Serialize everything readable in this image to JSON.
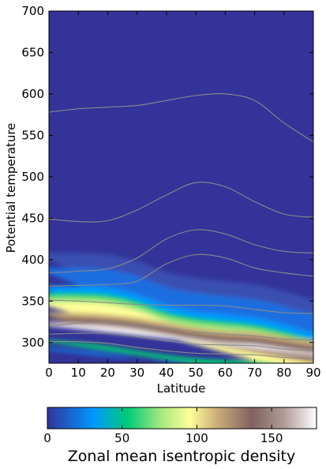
{
  "chart_data": {
    "type": "heatmap",
    "xlabel": "Latitude",
    "ylabel": "Potential temperature",
    "xlim": [
      0,
      90
    ],
    "ylim": [
      275,
      700
    ],
    "xticks": [
      0,
      10,
      20,
      30,
      40,
      50,
      60,
      70,
      80,
      90
    ],
    "yticks": [
      300,
      350,
      400,
      450,
      500,
      550,
      600,
      650,
      700
    ],
    "grid": false,
    "colormap": "terrain",
    "colorbar": {
      "label": "Zonal mean isentropic density",
      "range": [
        0,
        180
      ],
      "ticks": [
        0,
        50,
        100,
        150
      ],
      "orientation": "horizontal",
      "colors": [
        "#333399",
        "#0097ff",
        "#00cc77",
        "#a3e87f",
        "#fffe99",
        "#ccae79",
        "#80615d",
        "#b19d98",
        "#ffffff"
      ]
    },
    "x": [
      0,
      10,
      20,
      30,
      40,
      50,
      60,
      70,
      80,
      90
    ],
    "density_field": {
      "description_free": true,
      "peak_lower_theta": [
        315,
        312,
        308,
        302,
        297,
        293,
        291,
        290,
        285,
        280
      ],
      "peak_upper_theta": [
        325,
        324,
        322,
        318,
        312,
        306,
        302,
        300,
        295,
        290
      ],
      "upper_edge_theta": [
        368,
        368,
        366,
        358,
        345,
        338,
        334,
        330,
        322,
        312
      ]
    },
    "contour_lines": [
      {
        "level": 1,
        "theta": [
          578,
          582,
          584,
          586,
          592,
          598,
          600,
          592,
          565,
          542
        ]
      },
      {
        "level": 2,
        "theta": [
          449,
          446,
          447,
          460,
          478,
          493,
          488,
          470,
          455,
          451
        ]
      },
      {
        "level": 3,
        "theta": [
          384,
          386,
          389,
          402,
          425,
          436,
          431,
          418,
          410,
          408
        ]
      },
      {
        "level": 4,
        "theta": [
          368,
          369,
          370,
          374,
          395,
          406,
          402,
          390,
          384,
          380
        ]
      },
      {
        "level": 5,
        "theta": [
          351,
          350,
          348,
          346,
          345,
          345,
          344,
          340,
          336,
          335
        ]
      },
      {
        "level": 6,
        "theta": [
          320,
          323,
          325,
          322,
          318,
          313,
          310,
          308,
          304,
          303
        ]
      },
      {
        "level": 7,
        "theta": [
          310,
          311,
          311,
          307,
          302,
          298,
          297,
          296,
          292,
          290
        ]
      },
      {
        "level": 8,
        "theta": [
          301,
          301,
          299,
          294,
          290,
          287,
          286,
          285,
          282,
          280
        ]
      }
    ]
  }
}
